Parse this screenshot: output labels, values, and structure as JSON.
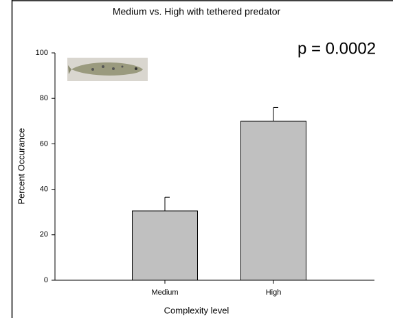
{
  "chart_data": {
    "type": "bar",
    "title": "Medium vs. High with tethered predator",
    "x_label": "Complexity level",
    "y_label": "Percent Occurance",
    "annotation": "p = 0.0002",
    "categories": [
      "Medium",
      "High"
    ],
    "values": [
      30.5,
      70
    ],
    "errors": [
      6,
      6
    ],
    "color": "#c0c0c0",
    "ylim": [
      0,
      100
    ],
    "yticks": [
      0,
      20,
      40,
      60,
      80,
      100
    ],
    "grid": false
  }
}
